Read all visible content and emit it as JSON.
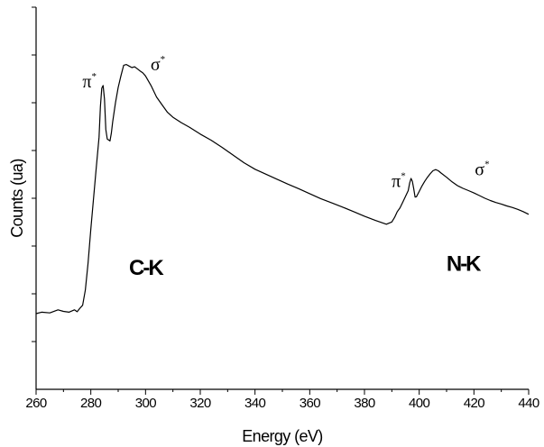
{
  "chart_data": {
    "type": "line",
    "title": "",
    "xlabel": "Energy (eV)",
    "ylabel": "Counts (ua)",
    "xlim": [
      260,
      440
    ],
    "ylim": [
      0,
      100
    ],
    "x_ticks": [
      "260",
      "280",
      "300",
      "320",
      "340",
      "360",
      "380",
      "400",
      "420",
      "440"
    ],
    "y_axis_tick_labels_shown": false,
    "grid": false,
    "legend": "none",
    "line_color": "#000000",
    "series": [
      {
        "x": [
          260,
          262,
          265,
          268,
          270,
          272,
          274,
          275,
          276,
          277,
          278,
          279,
          280,
          281,
          282,
          283,
          283.5,
          284,
          284.5,
          285,
          285.5,
          286,
          287,
          287.5,
          288,
          289,
          290,
          291,
          292,
          293,
          294,
          295,
          296,
          297,
          298,
          299,
          300,
          302,
          304,
          306,
          308,
          310,
          313,
          316,
          320,
          324,
          328,
          332,
          336,
          340,
          344,
          348,
          352,
          356,
          360,
          364,
          368,
          372,
          376,
          380,
          384,
          388,
          390,
          391,
          392,
          393,
          394,
          395,
          396,
          396.5,
          397,
          397.5,
          398,
          398.5,
          399,
          400,
          401,
          402,
          403,
          404,
          405,
          406,
          407,
          408,
          410,
          412,
          414,
          416,
          418,
          420,
          422,
          424,
          426,
          428,
          430,
          432,
          434,
          436,
          438,
          440
        ],
        "y": [
          19.8,
          20.2,
          20.0,
          20.8,
          20.4,
          20.2,
          20.8,
          20.3,
          21.2,
          22.0,
          26.0,
          33.0,
          42.0,
          50.0,
          58.0,
          66.0,
          74.0,
          78.8,
          79.5,
          76.0,
          68.0,
          65.5,
          65.0,
          67.0,
          70.0,
          75.0,
          79.0,
          82.0,
          84.8,
          85.0,
          84.6,
          84.2,
          84.4,
          83.9,
          83.3,
          82.8,
          82.0,
          79.5,
          76.5,
          74.5,
          72.5,
          71.2,
          69.8,
          68.6,
          66.8,
          65.2,
          63.3,
          61.3,
          59.3,
          57.6,
          56.3,
          55.0,
          53.7,
          52.5,
          51.2,
          49.9,
          48.8,
          47.7,
          46.5,
          45.3,
          44.2,
          43.2,
          43.8,
          45.0,
          46.5,
          47.5,
          49.0,
          50.5,
          52.0,
          54.0,
          55.2,
          54.4,
          52.5,
          50.3,
          50.4,
          51.8,
          53.2,
          54.4,
          55.5,
          56.4,
          57.2,
          57.5,
          57.2,
          56.6,
          55.5,
          54.3,
          53.3,
          52.6,
          52.0,
          51.4,
          50.7,
          50.0,
          49.4,
          48.9,
          48.5,
          48.0,
          47.6,
          47.1,
          46.5,
          45.8
        ]
      }
    ],
    "annotations": {
      "edges": [
        {
          "text": "C-K",
          "x": 300,
          "y": 30
        },
        {
          "text": "N-K",
          "x": 416,
          "y": 31
        }
      ],
      "peaks": [
        {
          "base": "π",
          "sup": "*",
          "x": 279.5,
          "y": 79
        },
        {
          "base": "σ",
          "sup": "*",
          "x": 304.5,
          "y": 83.5
        },
        {
          "base": "π",
          "sup": "*",
          "x": 392.5,
          "y": 53
        },
        {
          "base": "σ",
          "sup": "*",
          "x": 423,
          "y": 56
        }
      ]
    }
  }
}
